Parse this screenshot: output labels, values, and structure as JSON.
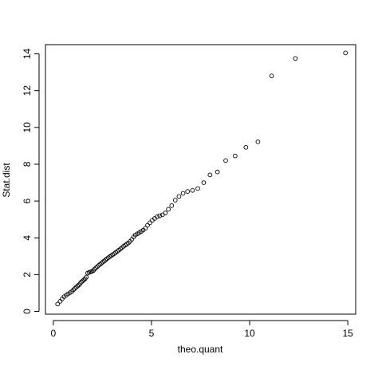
{
  "chart_data": {
    "type": "scatter",
    "title": "",
    "xlabel": "theo.quant",
    "ylabel": "Stat.dist",
    "xlim": [
      -0.4,
      15.4
    ],
    "ylim": [
      -0.15,
      14.5
    ],
    "xticks": [
      0,
      5,
      10,
      15
    ],
    "yticks": [
      0,
      2,
      4,
      6,
      8,
      10,
      12,
      14
    ],
    "marker": "open-circle",
    "marker_color": "#000000",
    "grid": false,
    "legend": "none",
    "points": [
      [
        0.22,
        0.4
      ],
      [
        0.35,
        0.55
      ],
      [
        0.45,
        0.68
      ],
      [
        0.55,
        0.8
      ],
      [
        0.65,
        0.88
      ],
      [
        0.75,
        0.95
      ],
      [
        0.85,
        1.02
      ],
      [
        0.95,
        1.08
      ],
      [
        1.03,
        1.18
      ],
      [
        1.1,
        1.25
      ],
      [
        1.17,
        1.32
      ],
      [
        1.24,
        1.38
      ],
      [
        1.3,
        1.44
      ],
      [
        1.37,
        1.52
      ],
      [
        1.43,
        1.6
      ],
      [
        1.5,
        1.66
      ],
      [
        1.56,
        1.72
      ],
      [
        1.62,
        1.78
      ],
      [
        1.68,
        1.86
      ],
      [
        1.75,
        2.08
      ],
      [
        1.82,
        2.12
      ],
      [
        1.9,
        2.15
      ],
      [
        1.97,
        2.18
      ],
      [
        2.04,
        2.22
      ],
      [
        2.1,
        2.3
      ],
      [
        2.17,
        2.37
      ],
      [
        2.24,
        2.43
      ],
      [
        2.31,
        2.5
      ],
      [
        2.38,
        2.56
      ],
      [
        2.45,
        2.62
      ],
      [
        2.52,
        2.68
      ],
      [
        2.59,
        2.74
      ],
      [
        2.66,
        2.8
      ],
      [
        2.73,
        2.86
      ],
      [
        2.8,
        2.92
      ],
      [
        2.88,
        2.98
      ],
      [
        2.95,
        3.03
      ],
      [
        3.02,
        3.08
      ],
      [
        3.1,
        3.14
      ],
      [
        3.18,
        3.2
      ],
      [
        3.26,
        3.27
      ],
      [
        3.34,
        3.33
      ],
      [
        3.42,
        3.4
      ],
      [
        3.5,
        3.47
      ],
      [
        3.58,
        3.54
      ],
      [
        3.66,
        3.6
      ],
      [
        3.74,
        3.66
      ],
      [
        3.82,
        3.72
      ],
      [
        3.91,
        3.8
      ],
      [
        4.0,
        3.92
      ],
      [
        4.09,
        4.05
      ],
      [
        4.18,
        4.15
      ],
      [
        4.28,
        4.22
      ],
      [
        4.38,
        4.28
      ],
      [
        4.48,
        4.35
      ],
      [
        4.58,
        4.42
      ],
      [
        4.69,
        4.52
      ],
      [
        4.8,
        4.68
      ],
      [
        4.92,
        4.82
      ],
      [
        5.04,
        4.95
      ],
      [
        5.16,
        5.05
      ],
      [
        5.29,
        5.15
      ],
      [
        5.42,
        5.2
      ],
      [
        5.56,
        5.25
      ],
      [
        5.71,
        5.35
      ],
      [
        5.86,
        5.55
      ],
      [
        6.03,
        5.75
      ],
      [
        6.21,
        6.05
      ],
      [
        6.4,
        6.25
      ],
      [
        6.61,
        6.42
      ],
      [
        6.84,
        6.52
      ],
      [
        7.09,
        6.58
      ],
      [
        7.36,
        6.68
      ],
      [
        7.66,
        7.0
      ],
      [
        7.98,
        7.42
      ],
      [
        8.36,
        7.58
      ],
      [
        8.78,
        8.2
      ],
      [
        9.26,
        8.45
      ],
      [
        9.81,
        8.92
      ],
      [
        10.42,
        9.22
      ],
      [
        11.12,
        12.8
      ],
      [
        12.33,
        13.75
      ],
      [
        14.88,
        14.05
      ]
    ]
  }
}
